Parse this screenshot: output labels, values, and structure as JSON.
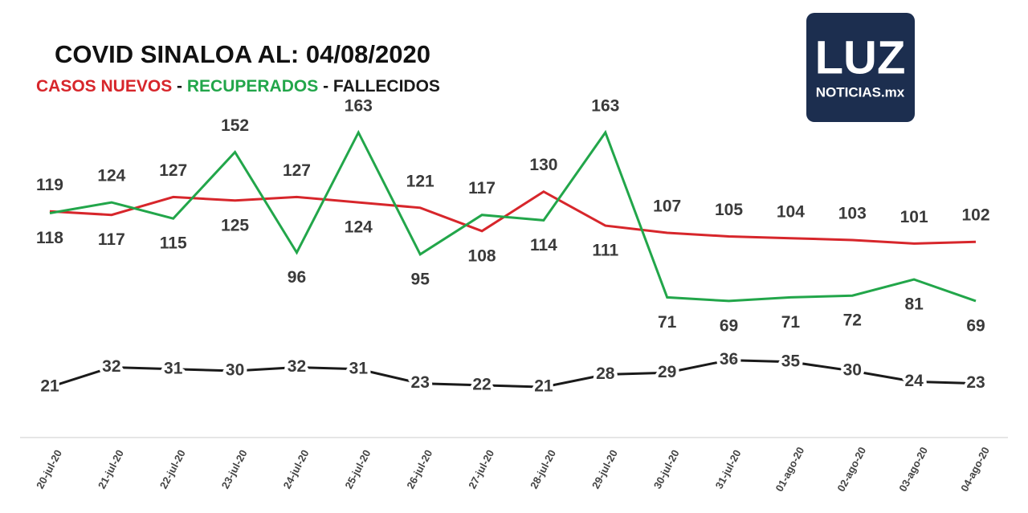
{
  "chart_data": {
    "type": "line",
    "title": "COVID SINALOA AL: 04/08/2020",
    "legend_separator": "-",
    "logo": {
      "title": "LUZ",
      "subtitle": "NOTICIAS.mx"
    },
    "categories": [
      "20-jul-20",
      "21-jul-20",
      "22-jul-20",
      "23-jul-20",
      "24-jul-20",
      "25-jul-20",
      "26-jul-20",
      "27-jul-20",
      "28-jul-20",
      "29-jul-20",
      "30-jul-20",
      "31-jul-20",
      "01-ago-20",
      "02-ago-20",
      "03-ago-20",
      "04-ago-20"
    ],
    "series": [
      {
        "name": "CASOS NUEVOS",
        "color": "#d7262b",
        "values": [
          119,
          117,
          127,
          125,
          127,
          124,
          121,
          108,
          130,
          111,
          107,
          105,
          104,
          103,
          101,
          102
        ]
      },
      {
        "name": "RECUPERADOS",
        "color": "#22a64a",
        "values": [
          118,
          124,
          115,
          152,
          96,
          163,
          95,
          117,
          114,
          163,
          71,
          69,
          71,
          72,
          81,
          69
        ]
      },
      {
        "name": "FALLECIDOS",
        "color": "#1a1a1a",
        "values": [
          21,
          32,
          31,
          30,
          32,
          31,
          23,
          22,
          21,
          28,
          29,
          36,
          35,
          30,
          24,
          23
        ]
      }
    ],
    "ylim": [
      0,
      180
    ]
  }
}
